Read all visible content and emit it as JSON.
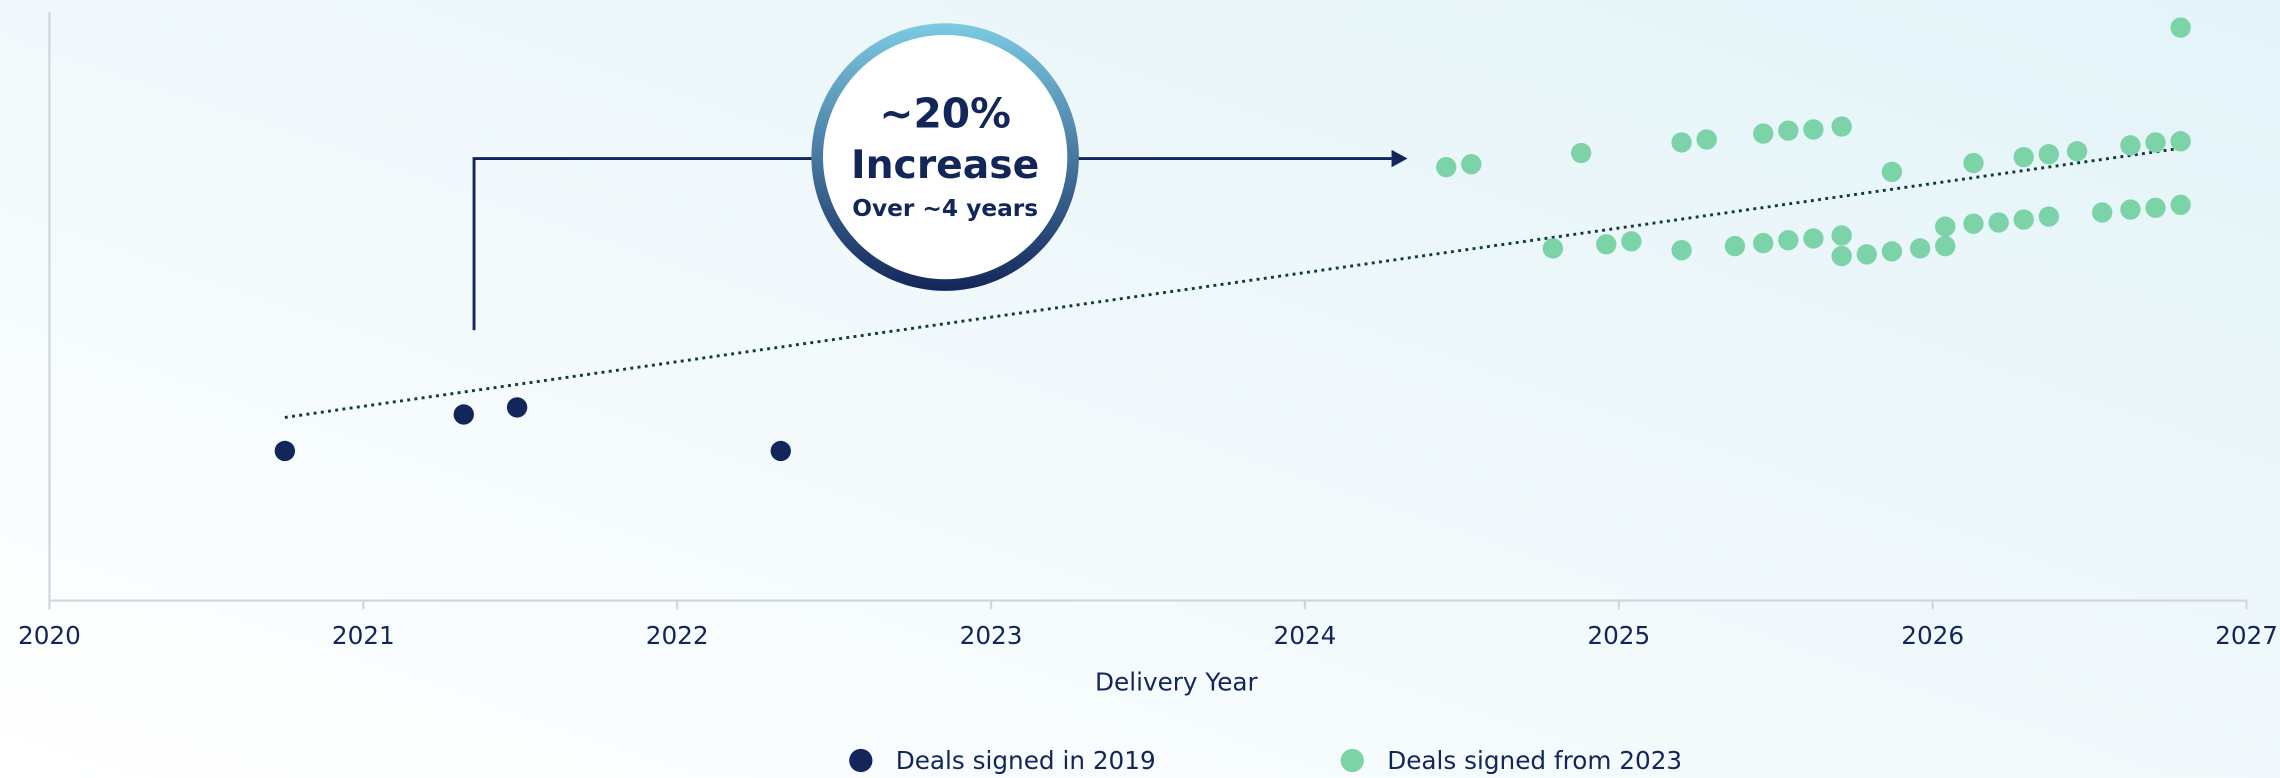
{
  "chart_data": {
    "type": "scatter",
    "xlabel": "Delivery Year",
    "xlim": [
      2020,
      2027
    ],
    "xticks": [
      2020,
      2021,
      2022,
      2023,
      2024,
      2025,
      2026,
      2027
    ],
    "ylim": [
      0,
      100
    ],
    "annotation": {
      "headline": "~20%",
      "title": "Increase",
      "subtitle": "Over ~4 years"
    },
    "trendline": {
      "x": [
        2020.75,
        2026.79
      ],
      "y": [
        31.1,
        76.8
      ]
    },
    "legend": "bottom",
    "series": [
      {
        "name": "Deals signed in 2019",
        "color": "#13265a",
        "x": [
          2020.75,
          2021.32,
          2021.49,
          2022.33
        ],
        "y": [
          25.4,
          31.6,
          32.8,
          25.4
        ]
      },
      {
        "name": "Deals signed from 2023",
        "color": "#7dd3a8",
        "x": [
          2024.45,
          2024.53,
          2024.88,
          2025.2,
          2025.28,
          2025.46,
          2025.54,
          2025.62,
          2025.71,
          2025.87,
          2026.13,
          2026.29,
          2026.37,
          2026.46,
          2026.63,
          2026.71,
          2026.79,
          2026.79,
          2024.79,
          2024.96,
          2025.04,
          2025.2,
          2025.37,
          2025.46,
          2025.54,
          2025.62,
          2025.71,
          2025.71,
          2025.79,
          2025.87,
          2025.96,
          2026.04,
          2026.04,
          2026.13,
          2026.21,
          2026.29,
          2026.37,
          2026.54,
          2026.63,
          2026.71,
          2026.79
        ],
        "y": [
          73.6,
          74.1,
          76.0,
          77.8,
          78.3,
          79.3,
          79.8,
          80.0,
          80.5,
          72.8,
          74.3,
          75.3,
          75.8,
          76.3,
          77.3,
          77.8,
          78.0,
          97.3,
          59.8,
          60.5,
          61.0,
          59.5,
          60.2,
          60.7,
          61.2,
          61.5,
          62.0,
          58.5,
          58.8,
          59.3,
          59.8,
          60.2,
          63.5,
          64.0,
          64.2,
          64.7,
          65.2,
          65.9,
          66.4,
          66.7,
          67.2
        ]
      }
    ]
  }
}
